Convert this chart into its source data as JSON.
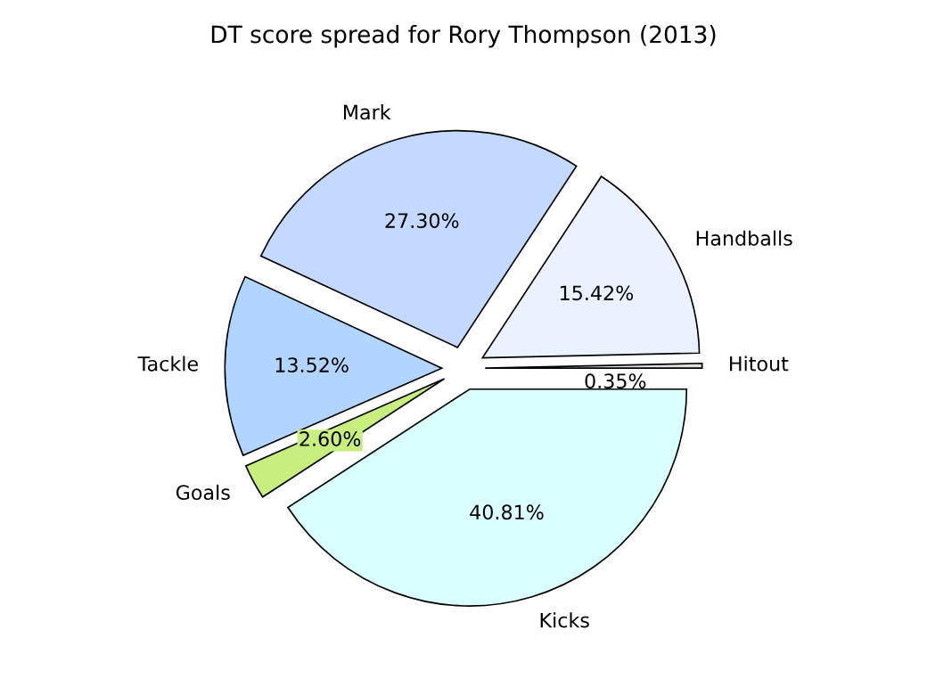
{
  "chart_data": {
    "type": "pie",
    "title": "DT score spread for Rory Thompson (2013)",
    "categories": [
      "Hitout",
      "Handballs",
      "Mark",
      "Tackle",
      "Goals",
      "Kicks"
    ],
    "values": [
      0.35,
      15.42,
      27.3,
      13.52,
      2.6,
      40.81
    ],
    "value_labels": [
      "0.35%",
      "15.42%",
      "27.30%",
      "13.52%",
      "2.60%",
      "40.81%"
    ],
    "colors": [
      "#e0e0e0",
      "#eaf1ff",
      "#c4d9ff",
      "#b2d5ff",
      "#c9ee80",
      "#d9ffff"
    ],
    "legend": false
  }
}
